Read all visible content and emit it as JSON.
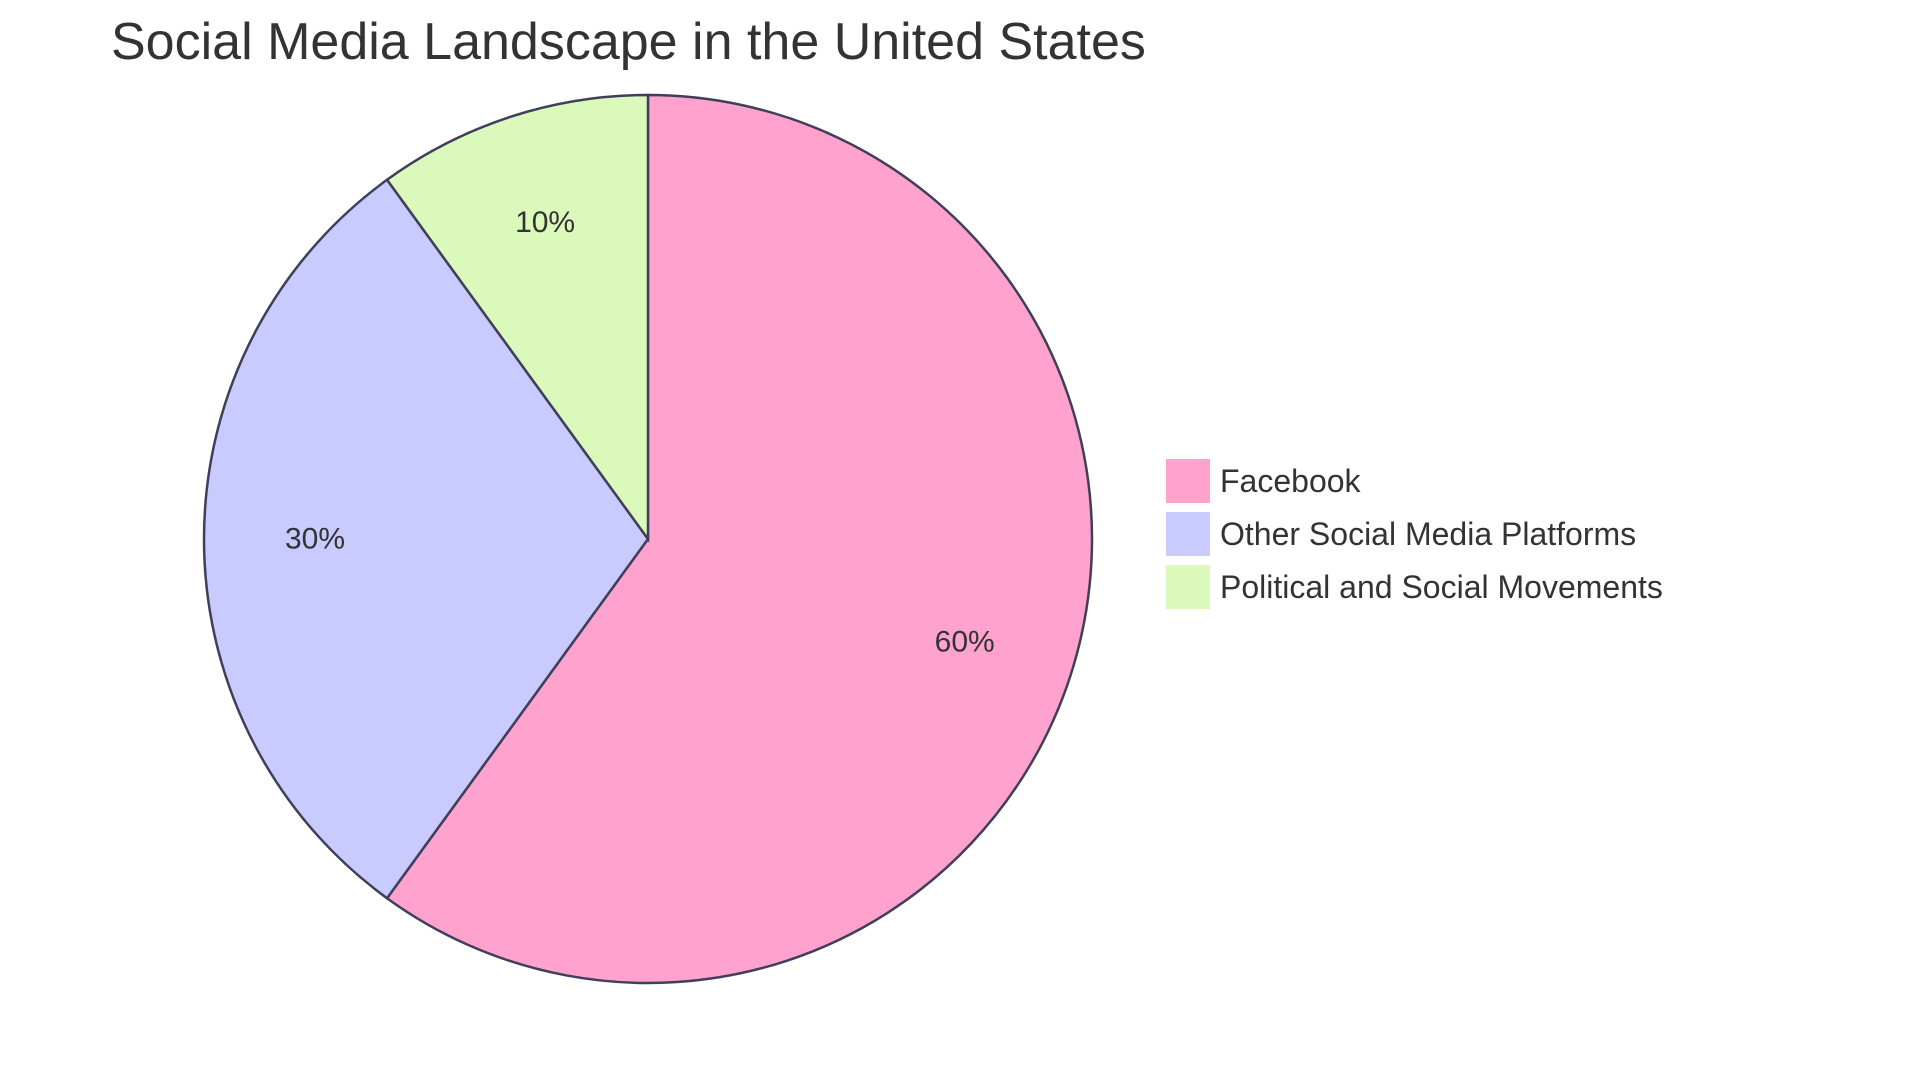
{
  "chart_data": {
    "type": "pie",
    "title": "Social Media Landscape in the United States",
    "slices": [
      {
        "label": "Facebook",
        "value": 60,
        "display": "60%",
        "color": "#FFA2CD"
      },
      {
        "label": "Other Social Media Platforms",
        "value": 30,
        "display": "30%",
        "color": "#C9CAFE"
      },
      {
        "label": "Political and Social Movements",
        "value": 10,
        "display": "10%",
        "color": "#DBF9BB"
      }
    ],
    "stroke_color": "#3F3F5A",
    "legend_position": "right"
  }
}
